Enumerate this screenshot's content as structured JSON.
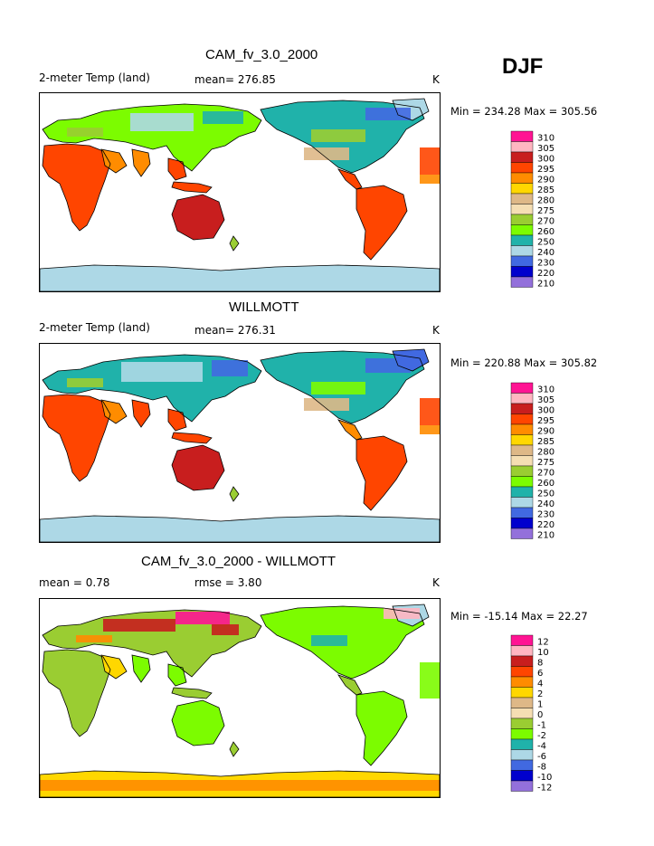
{
  "season_label": "DJF",
  "units": "K",
  "panels": [
    {
      "title": "CAM_fv_3.0_2000",
      "left_label": "2-meter Temp (land)",
      "mid_label": "mean= 276.85",
      "minmax": "Min = 234.28  Max = 305.56",
      "colorbar": [
        "310",
        "305",
        "300",
        "295",
        "290",
        "285",
        "280",
        "275",
        "270",
        "260",
        "250",
        "240",
        "230",
        "220",
        "210"
      ],
      "kind": "abs"
    },
    {
      "title": "WILLMOTT",
      "left_label": "2-meter Temp (land)",
      "mid_label": "mean= 276.31",
      "minmax": "Min = 220.88  Max = 305.82",
      "colorbar": [
        "310",
        "305",
        "300",
        "295",
        "290",
        "285",
        "280",
        "275",
        "270",
        "260",
        "250",
        "240",
        "230",
        "220",
        "210"
      ],
      "kind": "abs"
    },
    {
      "title": "CAM_fv_3.0_2000 - WILLMOTT",
      "left_label": "mean =    0.78",
      "mid_label": "rmse =    3.80",
      "minmax": "Min = -15.14  Max =  22.27",
      "colorbar": [
        "12",
        "10",
        "8",
        "6",
        "4",
        "2",
        "1",
        "0",
        "-1",
        "-2",
        "-4",
        "-6",
        "-8",
        "-10",
        "-12"
      ],
      "kind": "diff"
    }
  ],
  "colors": {
    "palette": [
      "#ff1493",
      "#ffb6c1",
      "#c81e1e",
      "#ff4500",
      "#ff8c00",
      "#ffd700",
      "#deb887",
      "#f5deb3",
      "#9acd32",
      "#7cfc00",
      "#20b2aa",
      "#add8e6",
      "#4169e1",
      "#0000cd",
      "#9370db"
    ],
    "outline": "#000000",
    "background": "#ffffff"
  }
}
